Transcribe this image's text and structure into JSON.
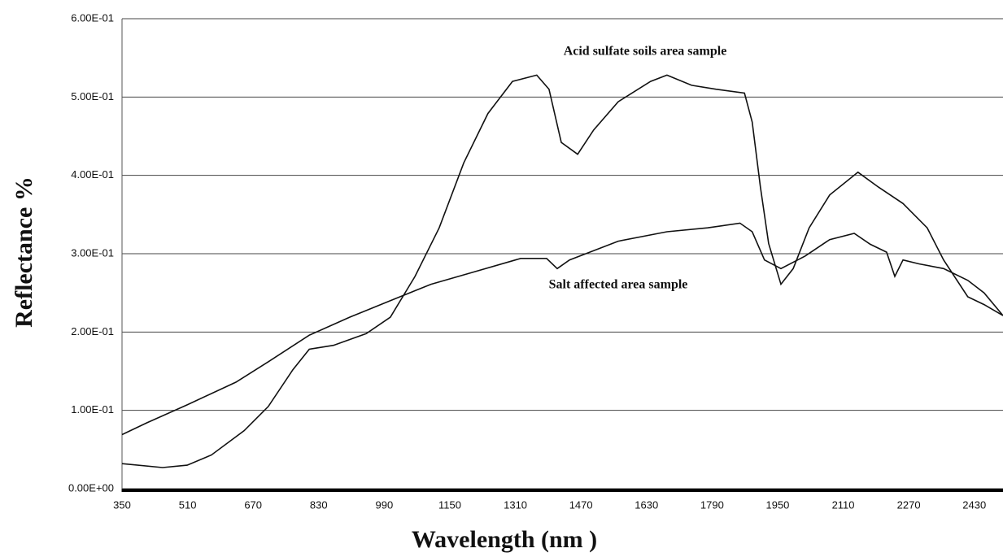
{
  "chart_data": {
    "type": "line",
    "x_label": "Wavelength (nm )",
    "y_label": "Reflectance %",
    "xlim": [
      350,
      2500
    ],
    "ylim": [
      0,
      0.6
    ],
    "xticks": [
      350,
      510,
      670,
      830,
      990,
      1150,
      1310,
      1470,
      1630,
      1790,
      1950,
      2110,
      2270,
      2430
    ],
    "yticks": [
      {
        "value": 0,
        "label": "0.00E+00"
      },
      {
        "value": 0.1,
        "label": "1.00E-01"
      },
      {
        "value": 0.2,
        "label": "2.00E-01"
      },
      {
        "value": 0.3,
        "label": "3.00E-01"
      },
      {
        "value": 0.4,
        "label": "4.00E-01"
      },
      {
        "value": 0.5,
        "label": "5.00E-01"
      },
      {
        "value": 0.6,
        "label": "6.00E-01"
      }
    ],
    "grid": true,
    "series": [
      {
        "name": "Acid sulfate soils area sample",
        "color": "#111111",
        "x": [
          350,
          449,
          509,
          568,
          648,
          707,
          767,
          807,
          866,
          946,
          1005,
          1065,
          1124,
          1184,
          1243,
          1303,
          1362,
          1392,
          1422,
          1462,
          1501,
          1561,
          1640,
          1680,
          1740,
          1799,
          1869,
          1888,
          1908,
          1928,
          1958,
          1988,
          2027,
          2077,
          2146,
          2196,
          2256,
          2315,
          2355,
          2414,
          2454,
          2500
        ],
        "values": [
          0.032,
          0.027,
          0.03,
          0.043,
          0.074,
          0.105,
          0.152,
          0.178,
          0.183,
          0.198,
          0.219,
          0.271,
          0.333,
          0.416,
          0.479,
          0.52,
          0.528,
          0.51,
          0.442,
          0.427,
          0.458,
          0.494,
          0.52,
          0.528,
          0.515,
          0.51,
          0.505,
          0.468,
          0.385,
          0.313,
          0.261,
          0.281,
          0.333,
          0.375,
          0.404,
          0.385,
          0.364,
          0.333,
          0.292,
          0.245,
          0.235,
          0.221
        ]
      },
      {
        "name": "Salt affected area sample",
        "color": "#111111",
        "x": [
          350,
          410,
          509,
          628,
          707,
          807,
          906,
          1005,
          1104,
          1204,
          1323,
          1386,
          1412,
          1442,
          1561,
          1680,
          1779,
          1858,
          1888,
          1918,
          1958,
          2017,
          2077,
          2137,
          2176,
          2216,
          2236,
          2256,
          2295,
          2355,
          2414,
          2454,
          2500
        ],
        "values": [
          0.069,
          0.084,
          0.107,
          0.136,
          0.162,
          0.196,
          0.219,
          0.24,
          0.261,
          0.276,
          0.294,
          0.294,
          0.281,
          0.292,
          0.316,
          0.328,
          0.333,
          0.339,
          0.328,
          0.292,
          0.281,
          0.297,
          0.318,
          0.326,
          0.312,
          0.302,
          0.271,
          0.292,
          0.287,
          0.281,
          0.266,
          0.25,
          0.221
        ]
      }
    ]
  }
}
